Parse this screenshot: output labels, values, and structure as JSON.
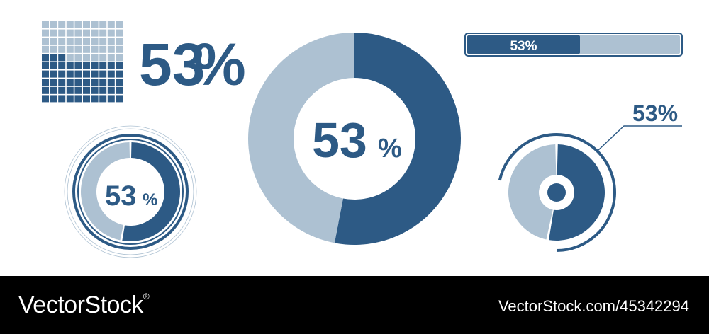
{
  "colors": {
    "dark": "#2d5a85",
    "light": "#adc1d2",
    "white": "#ffffff"
  },
  "chart_data": [
    {
      "type": "waffle",
      "value": 53,
      "total": 100,
      "label_number": "53",
      "label_symbol": "%"
    },
    {
      "type": "donut",
      "value": 53,
      "total": 100,
      "label_number": "53",
      "label_symbol": "%"
    },
    {
      "type": "progress-bar",
      "value": 53,
      "total": 100,
      "label": "53%"
    },
    {
      "type": "donut",
      "value": 53,
      "total": 100,
      "label_number": "53",
      "label_symbol": "%"
    },
    {
      "type": "donut",
      "value": 53,
      "total": 100,
      "label": "53%"
    }
  ],
  "footer": {
    "brand": "VectorStock",
    "brand_mark": "®",
    "ref": "VectorStock.com/45342294"
  }
}
